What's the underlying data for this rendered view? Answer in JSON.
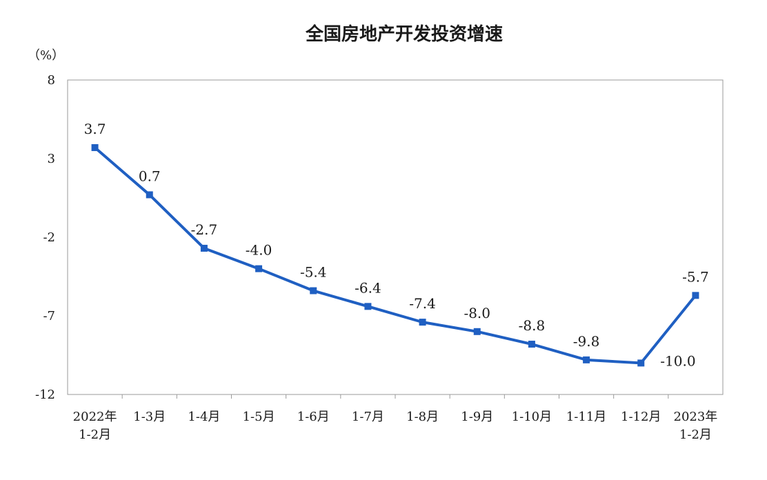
{
  "chart_data": {
    "type": "line",
    "title": "全国房地产开发投资增速",
    "ylabel": "（%）",
    "xlabel": "",
    "ylim": [
      -12,
      8
    ],
    "yticks": [
      8,
      3,
      -2,
      -7,
      -12
    ],
    "grid": false,
    "legend": "none",
    "categories": [
      [
        "2022年",
        "1-2月"
      ],
      [
        "1-3月"
      ],
      [
        "1-4月"
      ],
      [
        "1-5月"
      ],
      [
        "1-6月"
      ],
      [
        "1-7月"
      ],
      [
        "1-8月"
      ],
      [
        "1-9月"
      ],
      [
        "1-10月"
      ],
      [
        "1-11月"
      ],
      [
        "1-12月"
      ],
      [
        "2023年",
        "1-2月"
      ]
    ],
    "series": [
      {
        "values": [
          3.7,
          0.7,
          -2.7,
          -4.0,
          -5.4,
          -6.4,
          -7.4,
          -8.0,
          -8.8,
          -9.8,
          -10.0,
          -5.7
        ],
        "labels": [
          "3.7",
          "0.7",
          "-2.7",
          "-4.0",
          "-5.4",
          "-6.4",
          "-7.4",
          "-8.0",
          "-8.8",
          "-9.8",
          "-10.0",
          "-5.7"
        ],
        "color": "#1f5fc2"
      }
    ]
  }
}
